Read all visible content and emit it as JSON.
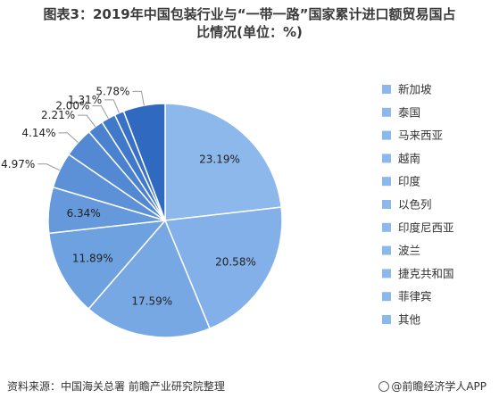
{
  "title_line1": "图表3：2019年中国包装行业与“一带一路”国家累计进口额贸易国占",
  "title_line2": "比情况(单位：%)",
  "source": "资料来源：中国海关总署 前瞻产业研究院整理",
  "credit": "@前瞻经济学人APP",
  "colors": {
    "slices": [
      "#8db8ec",
      "#83b0e8",
      "#78a8e4",
      "#6ea1e0",
      "#6599dc",
      "#5c91d8",
      "#5389d3",
      "#4a82cf",
      "#4179ca",
      "#3871c5",
      "#2f69c0"
    ],
    "legend_marker": "#8db8ec",
    "leader": "#999999"
  },
  "chart_data": {
    "type": "pie",
    "title": "图表3：2019年中国包装行业与“一带一路”国家累计进口额贸易国占比情况(单位：%)",
    "categories": [
      "新加坡",
      "泰国",
      "马来西亚",
      "越南",
      "印度",
      "以色列",
      "印度尼西亚",
      "波兰",
      "捷克共和国",
      "菲律宾",
      "其他"
    ],
    "values": [
      23.19,
      20.58,
      17.59,
      11.89,
      6.34,
      4.97,
      4.14,
      2.21,
      2.0,
      1.31,
      5.78
    ],
    "labels": [
      "23.19%",
      "20.58%",
      "17.59%",
      "11.89%",
      "6.34%",
      "4.97%",
      "4.14%",
      "2.21%",
      "2.00%",
      "1.31%",
      "5.78%"
    ],
    "legend_position": "right"
  }
}
